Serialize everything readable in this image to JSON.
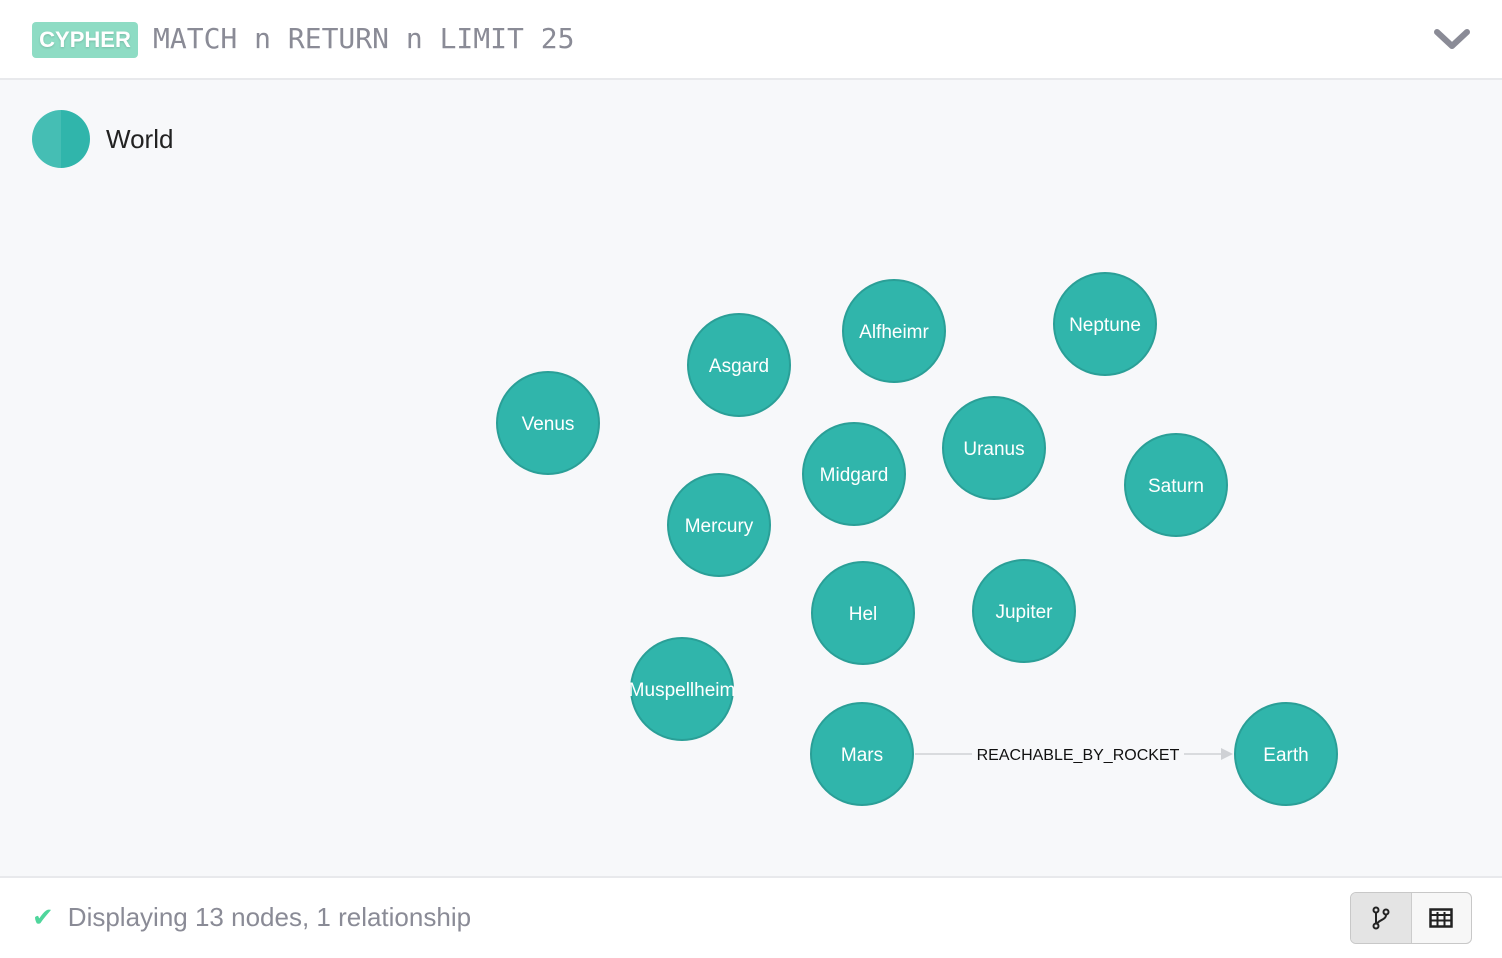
{
  "header": {
    "badge": "CYPHER",
    "query": "MATCH n RETURN n LIMIT 25",
    "collapse_icon": "chevron-down-icon"
  },
  "legend": {
    "label": "World",
    "color": "#30b5ab"
  },
  "graph": {
    "node_color": "#30b5ab",
    "nodes": [
      "Alfheimr",
      "Neptune",
      "Asgard",
      "Venus",
      "Uranus",
      "Midgard",
      "Saturn",
      "Mercury",
      "Hel",
      "Jupiter",
      "Muspellheim",
      "Mars",
      "Earth"
    ],
    "relationships": [
      {
        "from": "Mars",
        "to": "Earth",
        "type": "REACHABLE_BY_ROCKET"
      }
    ]
  },
  "footer": {
    "status": "Displaying 13 nodes, 1 relationship",
    "status_icon": "check-icon",
    "views": [
      "graph-view-icon",
      "table-view-icon"
    ],
    "active_view": "graph"
  }
}
